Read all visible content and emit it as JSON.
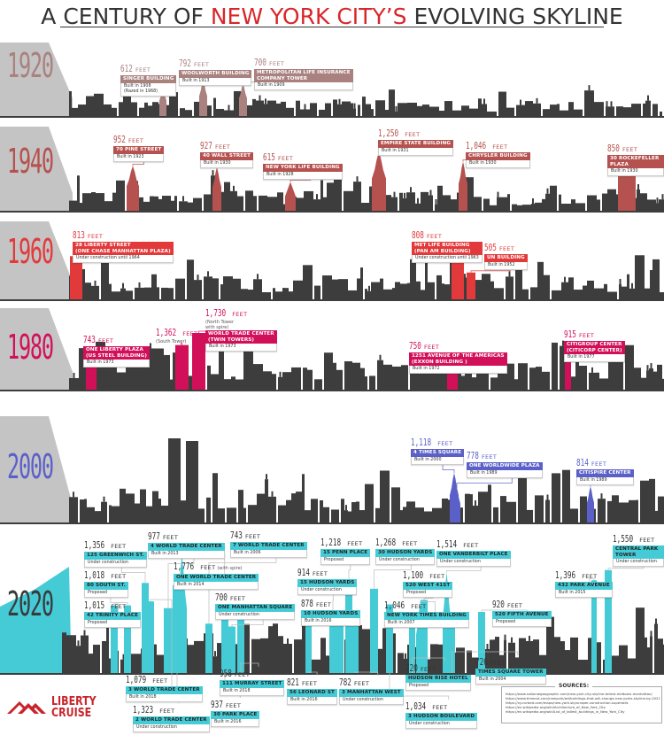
{
  "title": {
    "prefix": "A CENTURY OF ",
    "highlight": "NEW YORK CITY’S",
    "suffix": " EVOLVING SKYLINE"
  },
  "unit": "FEET",
  "colors": {
    "skyline": "#3d3d3d",
    "wedge": "#c4c4c4",
    "title_accent": "#d9262a"
  },
  "eras": [
    {
      "year": "1920",
      "color": "#a9817f",
      "buildings": [
        {
          "feet": "612",
          "name": "SINGER BUILDING",
          "status": "Built in 1908\n(Razed in 1968)"
        },
        {
          "feet": "792",
          "name": "WOOLWORTH BUILDING",
          "status": "Built in 1913"
        },
        {
          "feet": "700",
          "name": "METROPOLITAN LIFE INSURANCE\nCOMPANY TOWER",
          "status": "Built in 1909"
        }
      ]
    },
    {
      "year": "1940",
      "color": "#b5514e",
      "buildings": [
        {
          "feet": "952",
          "name": "70 PINE STREET",
          "status": "Built in 1923"
        },
        {
          "feet": "927",
          "name": "40 WALL STREET",
          "status": "Built in 1930"
        },
        {
          "feet": "615",
          "name": "NEW YORK LIFE BUILDING",
          "status": "Built in 1928"
        },
        {
          "feet": "1,250",
          "name": "EMPIRE STATE BUILDING",
          "status": "Built in 1931"
        },
        {
          "feet": "1,046",
          "name": "CHRYSLER BUILDING",
          "status": "Built in 1930"
        },
        {
          "feet": "850",
          "name": "30 ROCKEFELLER PLAZA",
          "status": "Built in 1930"
        }
      ]
    },
    {
      "year": "1960",
      "color": "#e2393a",
      "buildings": [
        {
          "feet": "813",
          "name": "28 LIBERTY STREET\n(ONE CHASE MANHATTAN PLAZA)",
          "status": "Under construction until 1964"
        },
        {
          "feet": "808",
          "name": "MET LIFE BUILDING\n(PAN AM BUILDING)",
          "status": "Under construction until 1963"
        },
        {
          "feet": "505",
          "name": "UN BUILDING",
          "status": "Built in 1952"
        }
      ]
    },
    {
      "year": "1980",
      "color": "#d2105a",
      "buildings": [
        {
          "feet": "743",
          "name": "ONE LIBERTY PLAZA\n(US STEEL BUILDING)",
          "status": "Built in 1973"
        },
        {
          "feet": "1,362",
          "note": "(South Tower)"
        },
        {
          "feet": "1,730",
          "note": "(North Tower\nwith spire)",
          "name": "WORLD TRADE CENTER\n(TWIN TOWERS)",
          "status": "Built in 1973"
        },
        {
          "feet": "750",
          "name": "1251 AVENUE OF THE AMERICAS\n(EXXON BUILDING )",
          "status": "Built in 1972"
        },
        {
          "feet": "915",
          "name": "CITIGROUP CENTER\n(CITICORP CENTER)",
          "status": "Built in 1977"
        }
      ]
    },
    {
      "year": "2000",
      "color": "#5b60c9",
      "buildings": [
        {
          "feet": "1,118",
          "name": "4 TIMES SQUARE",
          "status": "Built in 2000"
        },
        {
          "feet": "778",
          "name": "ONE WORLDWIDE PLAZA",
          "status": "Built in 1989"
        },
        {
          "feet": "814",
          "name": "CITISPIRE CENTER",
          "status": "Built in 1989"
        }
      ]
    },
    {
      "year": "2020",
      "color": "#45cbd6",
      "buildings": [
        {
          "feet": "1,356",
          "name": "125 GREENWICH ST.",
          "status": "Under construction"
        },
        {
          "feet": "1,018",
          "name": "80 SOUTH ST.",
          "status": "Proposed"
        },
        {
          "feet": "1,015",
          "name": "42 TRINITY PLACE",
          "status": "Proposed"
        },
        {
          "feet": "977",
          "name": "4 WORLD TRADE CENTER",
          "status": "Built in 2013"
        },
        {
          "feet": "1,776",
          "note": "(with spire)",
          "name": "ONE WORLD TRADE CENTER",
          "status": "Built in 2014"
        },
        {
          "feet": "743",
          "name": "7 WORLD TRADE CENTER",
          "status": "Built in 2006"
        },
        {
          "feet": "700",
          "name": "ONE MANHATTAN SQUARE",
          "status": "Under construction"
        },
        {
          "feet": "1,218",
          "name": "15 PENN PLACE",
          "status": "Proposed"
        },
        {
          "feet": "914",
          "name": "15 HUDSON YARDS",
          "status": "Under construction"
        },
        {
          "feet": "878",
          "name": "10 HUDSON YARDS",
          "status": "Built in 2016"
        },
        {
          "feet": "1,268",
          "name": "30 HUDSON YARDS",
          "status": "Under construction"
        },
        {
          "feet": "1,514",
          "name": "ONE VANDERBILT PLACE",
          "status": "Under construction"
        },
        {
          "feet": "1,100",
          "name": "520 WEST 41ST",
          "status": "Proposed"
        },
        {
          "feet": "1,046",
          "name": "NEW YORK TIMES BUILDING",
          "status": "Built in 2007"
        },
        {
          "feet": "920",
          "name": "520 FIFTH AVENUE",
          "status": "Proposed"
        },
        {
          "feet": "1,396",
          "name": "432 PARK AVENUE",
          "status": "Built in 2015"
        },
        {
          "feet": "1,550",
          "name": "CENTRAL PARK TOWER",
          "status": "Under construction"
        },
        {
          "feet": "1,079",
          "name": "3 WORLD TRADE CENTER",
          "status": "Built in 2018"
        },
        {
          "feet": "1,323",
          "name": "2 WORLD TRADE CENTER",
          "status": "Under construction"
        },
        {
          "feet": "937",
          "name": "30 PARK PLACE",
          "status": "Built in 2016"
        },
        {
          "feet": "958",
          "name": "111 MURRAY STREET",
          "status": "Built in 2018"
        },
        {
          "feet": "821",
          "name": "56 LEONARD ST",
          "status": "Built in 2016"
        },
        {
          "feet": "782",
          "name": "3 MANHATTAN WEST",
          "status": "Under construction"
        },
        {
          "feet": "1,034",
          "name": "3 HUDSON BOULEVARD",
          "status": "Under construction"
        },
        {
          "feet": "720",
          "name": "HUDSON RISE HOTEL",
          "status": "Proposed"
        },
        {
          "feet": "726",
          "name": "TIMES SQUARE TOWER",
          "status": "Built in 2004"
        }
      ]
    }
  ],
  "logo": {
    "line1": "LIBERTY",
    "line2": "CRUISE",
    "color": "#c8242b"
  },
  "sources": {
    "title": "SOURCES:",
    "items": [
      "https://www.nationalgeographic.com/new-york-city-skyline-tallest-midtown-manhattan/",
      "https://www.timeout.com/newyork/art/buildings-that-will-change-new-yorks-skyline-by-2021",
      "https://ny.curbed.com/maps/new-york-skyscraper-construction-supertalls",
      "https://en.wikipedia.org/wiki/Architecture_of_New_York_City",
      "https://en.wikipedia.org/wiki/List_of_tallest_buildings_in_New_York_City"
    ]
  }
}
